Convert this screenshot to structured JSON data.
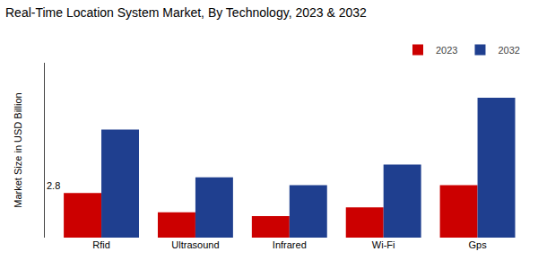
{
  "chart_data": {
    "type": "bar",
    "title": "Real-Time Location System Market, By Technology, 2023 & 2032",
    "ylabel": "Market Size in USD Billion",
    "categories": [
      "Rfid",
      "Ultrasound",
      "Infrared",
      "Wi-Fi",
      "Gps"
    ],
    "series": [
      {
        "name": "2023",
        "color": "#cc0000",
        "values": [
          2.8,
          1.6,
          1.35,
          1.9,
          3.3
        ]
      },
      {
        "name": "2032",
        "color": "#1f3f8f",
        "values": [
          6.8,
          3.8,
          3.3,
          4.6,
          8.8
        ]
      }
    ],
    "annotations": [
      {
        "text": "2.8",
        "category": "Rfid",
        "series": "2023"
      }
    ],
    "ylim": [
      0,
      11
    ],
    "yticks": [],
    "tick_labels": "x",
    "grid": false,
    "legend": "upper right"
  }
}
